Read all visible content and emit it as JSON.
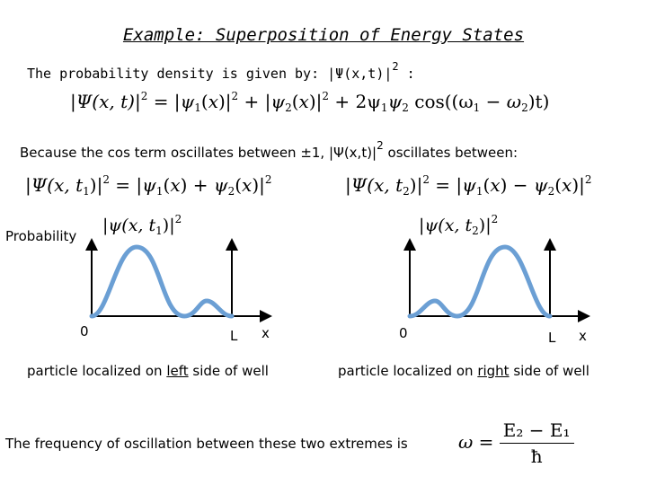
{
  "title": "Example: Superposition of Energy States",
  "intro": {
    "text": "The probability density is given by: |Ψ(x,t)|",
    "exp": "2",
    "tail": " :"
  },
  "equation_main": {
    "lhs": "Ψ(x, t)",
    "eq": "=",
    "t1": "ψ",
    "t1_sub": "1",
    "t2": "ψ",
    "t2_sub": "2",
    "plus": "+",
    "cross": "2ψ",
    "cross_sub1": "1",
    "cross_psi2": "ψ",
    "cross_sub2": "2",
    "cos": "cos((ω",
    "w1": "1",
    "minus": "−",
    "w2sym": "ω",
    "w2": "2",
    "end": ")t)"
  },
  "oscillation_text": {
    "text": "Because the cos term oscillates between ±1, |Ψ(x,t)|",
    "exp": "2",
    "tail": " oscillates between:"
  },
  "left_case": {
    "lhs": "Ψ(x, t",
    "lhs_sub": "1",
    "plus": "+",
    "caption_pre": "particle localized on ",
    "caption_key": "left",
    "caption_post": " side of well"
  },
  "right_case": {
    "lhs": "Ψ(x, t",
    "lhs_sub": "2",
    "minus": "−",
    "caption_pre": "particle localized on ",
    "caption_key": "right",
    "caption_post": " side of well"
  },
  "plot_labels": {
    "ylabel": "Probability",
    "origin": "0",
    "well_edge": "L",
    "xlabel": "x",
    "left_curve": "ψ(x, t",
    "left_curve_sub": "1",
    "right_curve": "ψ(x, t",
    "right_curve_sub": "2"
  },
  "frequency": {
    "text": "The frequency of oscillation between these two extremes is",
    "omega": "ω",
    "eq": "=",
    "num": "E₂ − E₁",
    "den": "ħ"
  },
  "colors": {
    "curve": "#6b9fd4",
    "axis": "#000000"
  }
}
